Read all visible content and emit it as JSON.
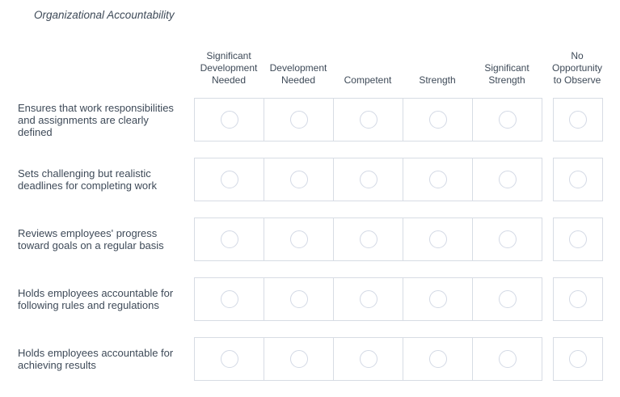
{
  "title": "Organizational Accountability",
  "matrix": {
    "columns": [
      "Significant Development Needed",
      "Development Needed",
      "Competent",
      "Strength",
      "Significant Strength",
      "No Opportunity to Observe"
    ],
    "rows": [
      "Ensures that work responsibilities and assignments are clearly defined",
      "Sets challenging but realistic deadlines for completing work",
      "Reviews employees' progress toward goals on a regular basis",
      "Holds employees accountable for following rules and regulations",
      "Holds employees accountable for achieving results"
    ],
    "selection_state": "all-unselected"
  },
  "colors": {
    "text": "#3e4a58",
    "cell_border": "#d7dce4",
    "radio_border": "#d3d9e5",
    "background": "#ffffff"
  }
}
